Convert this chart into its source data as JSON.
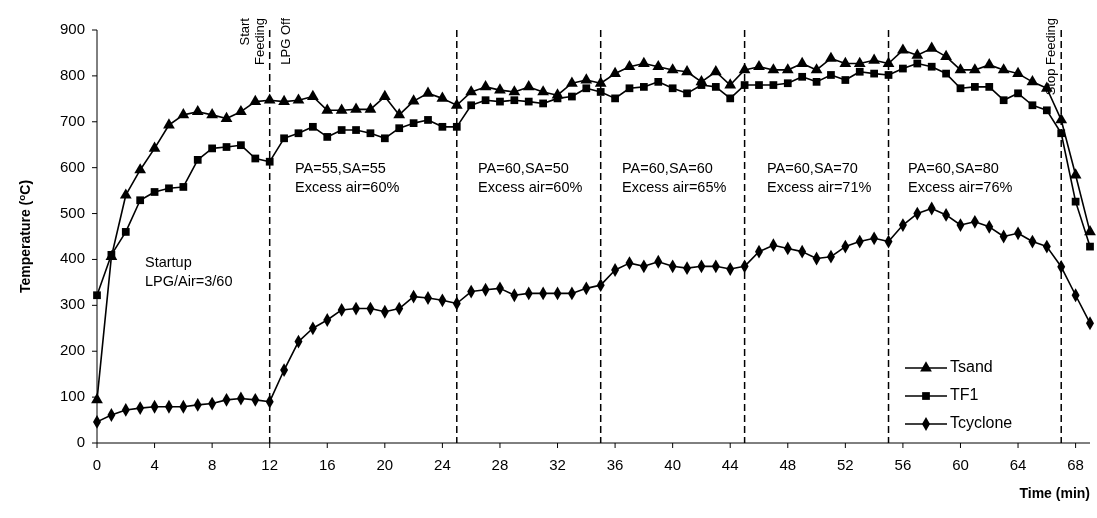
{
  "chart_data": {
    "type": "line",
    "xlabel": "Time (min)",
    "ylabel": "Temperature ($^{o}$C)",
    "xlim": [
      0,
      69
    ],
    "xticks": [
      0,
      4,
      8,
      12,
      16,
      20,
      24,
      28,
      32,
      36,
      40,
      44,
      48,
      52,
      56,
      60,
      64,
      68
    ],
    "ylim": [
      0,
      900
    ],
    "yticks": [
      0,
      100,
      200,
      300,
      400,
      500,
      600,
      700,
      800,
      900
    ],
    "legend": "right",
    "line_style": "solid",
    "x": [
      0,
      1,
      2,
      3,
      4,
      5,
      6,
      7,
      8,
      9,
      10,
      11,
      12,
      13,
      14,
      15,
      16,
      17,
      18,
      19,
      20,
      21,
      22,
      23,
      24,
      25,
      26,
      27,
      28,
      29,
      30,
      31,
      32,
      33,
      34,
      35,
      36,
      37,
      38,
      39,
      40,
      41,
      42,
      43,
      44,
      45,
      46,
      47,
      48,
      49,
      50,
      51,
      52,
      53,
      54,
      55,
      56,
      57,
      58,
      59,
      60,
      61,
      62,
      63,
      64,
      65,
      66,
      67,
      68,
      69
    ],
    "series": [
      {
        "name": "Tsand",
        "color": "#000000",
        "marker": "triangle",
        "values": [
          94,
          406,
          540,
          595,
          642,
          693,
          715,
          722,
          715,
          707,
          722,
          744,
          747,
          744,
          747,
          755,
          725,
          725,
          727,
          727,
          755,
          715,
          745,
          762,
          751,
          736,
          765,
          776,
          769,
          765,
          776,
          765,
          758,
          784,
          791,
          784,
          805,
          820,
          827,
          820,
          813,
          809,
          787,
          809,
          780,
          813,
          820,
          813,
          813,
          827,
          813,
          838,
          827,
          827,
          834,
          827,
          856,
          845,
          860,
          842,
          813,
          813,
          824,
          813,
          805,
          787,
          773,
          704,
          584,
          460
        ]
      },
      {
        "name": "TF1",
        "color": "#000000",
        "marker": "square",
        "values": [
          322,
          410,
          460,
          529,
          547,
          555,
          558,
          617,
          642,
          645,
          649,
          620,
          613,
          664,
          675,
          689,
          667,
          682,
          682,
          675,
          664,
          686,
          697,
          704,
          689,
          689,
          736,
          747,
          744,
          747,
          744,
          740,
          751,
          755,
          773,
          765,
          751,
          773,
          776,
          787,
          773,
          762,
          780,
          776,
          751,
          780,
          780,
          780,
          784,
          798,
          787,
          802,
          791,
          809,
          805,
          802,
          816,
          827,
          820,
          805,
          773,
          776,
          776,
          747,
          762,
          736,
          725,
          675,
          526,
          428
        ]
      },
      {
        "name": "Tcyclone",
        "color": "#000000",
        "marker": "diamond",
        "values": [
          46,
          61,
          72,
          76,
          79,
          79,
          79,
          83,
          86,
          94,
          97,
          94,
          90,
          159,
          221,
          250,
          268,
          290,
          293,
          293,
          286,
          293,
          319,
          316,
          311,
          304,
          330,
          334,
          337,
          322,
          326,
          326,
          326,
          326,
          337,
          344,
          377,
          392,
          385,
          395,
          385,
          381,
          385,
          385,
          379,
          385,
          417,
          431,
          424,
          417,
          402,
          406,
          428,
          439,
          446,
          439,
          475,
          500,
          511,
          497,
          475,
          482,
          471,
          450,
          457,
          439,
          428,
          384,
          322,
          261
        ]
      }
    ],
    "ref_lines": [
      {
        "axis": "x",
        "value": 12,
        "label": "Start\nFeeding",
        "line_style": "dashed"
      },
      {
        "axis": "x",
        "value": 25,
        "line_style": "dashed"
      },
      {
        "axis": "x",
        "value": 35,
        "line_style": "dashed"
      },
      {
        "axis": "x",
        "value": 45,
        "line_style": "dashed"
      },
      {
        "axis": "x",
        "value": 55,
        "line_style": "dashed"
      },
      {
        "axis": "x",
        "value": 67,
        "label": "Stop Feeding",
        "line_style": "dashed"
      }
    ],
    "annotations": [
      "LPG Off",
      "Startup\nLPG/Air=3/60",
      "PA=55,SA=55\nExcess air=60%",
      "PA=60,SA=50\nExcess air=60%",
      "PA=60,SA=60\nExcess air=65%",
      "PA=60,SA=70\nExcess air=71%",
      "PA=60,SA=80\nExcess air=76%"
    ]
  }
}
